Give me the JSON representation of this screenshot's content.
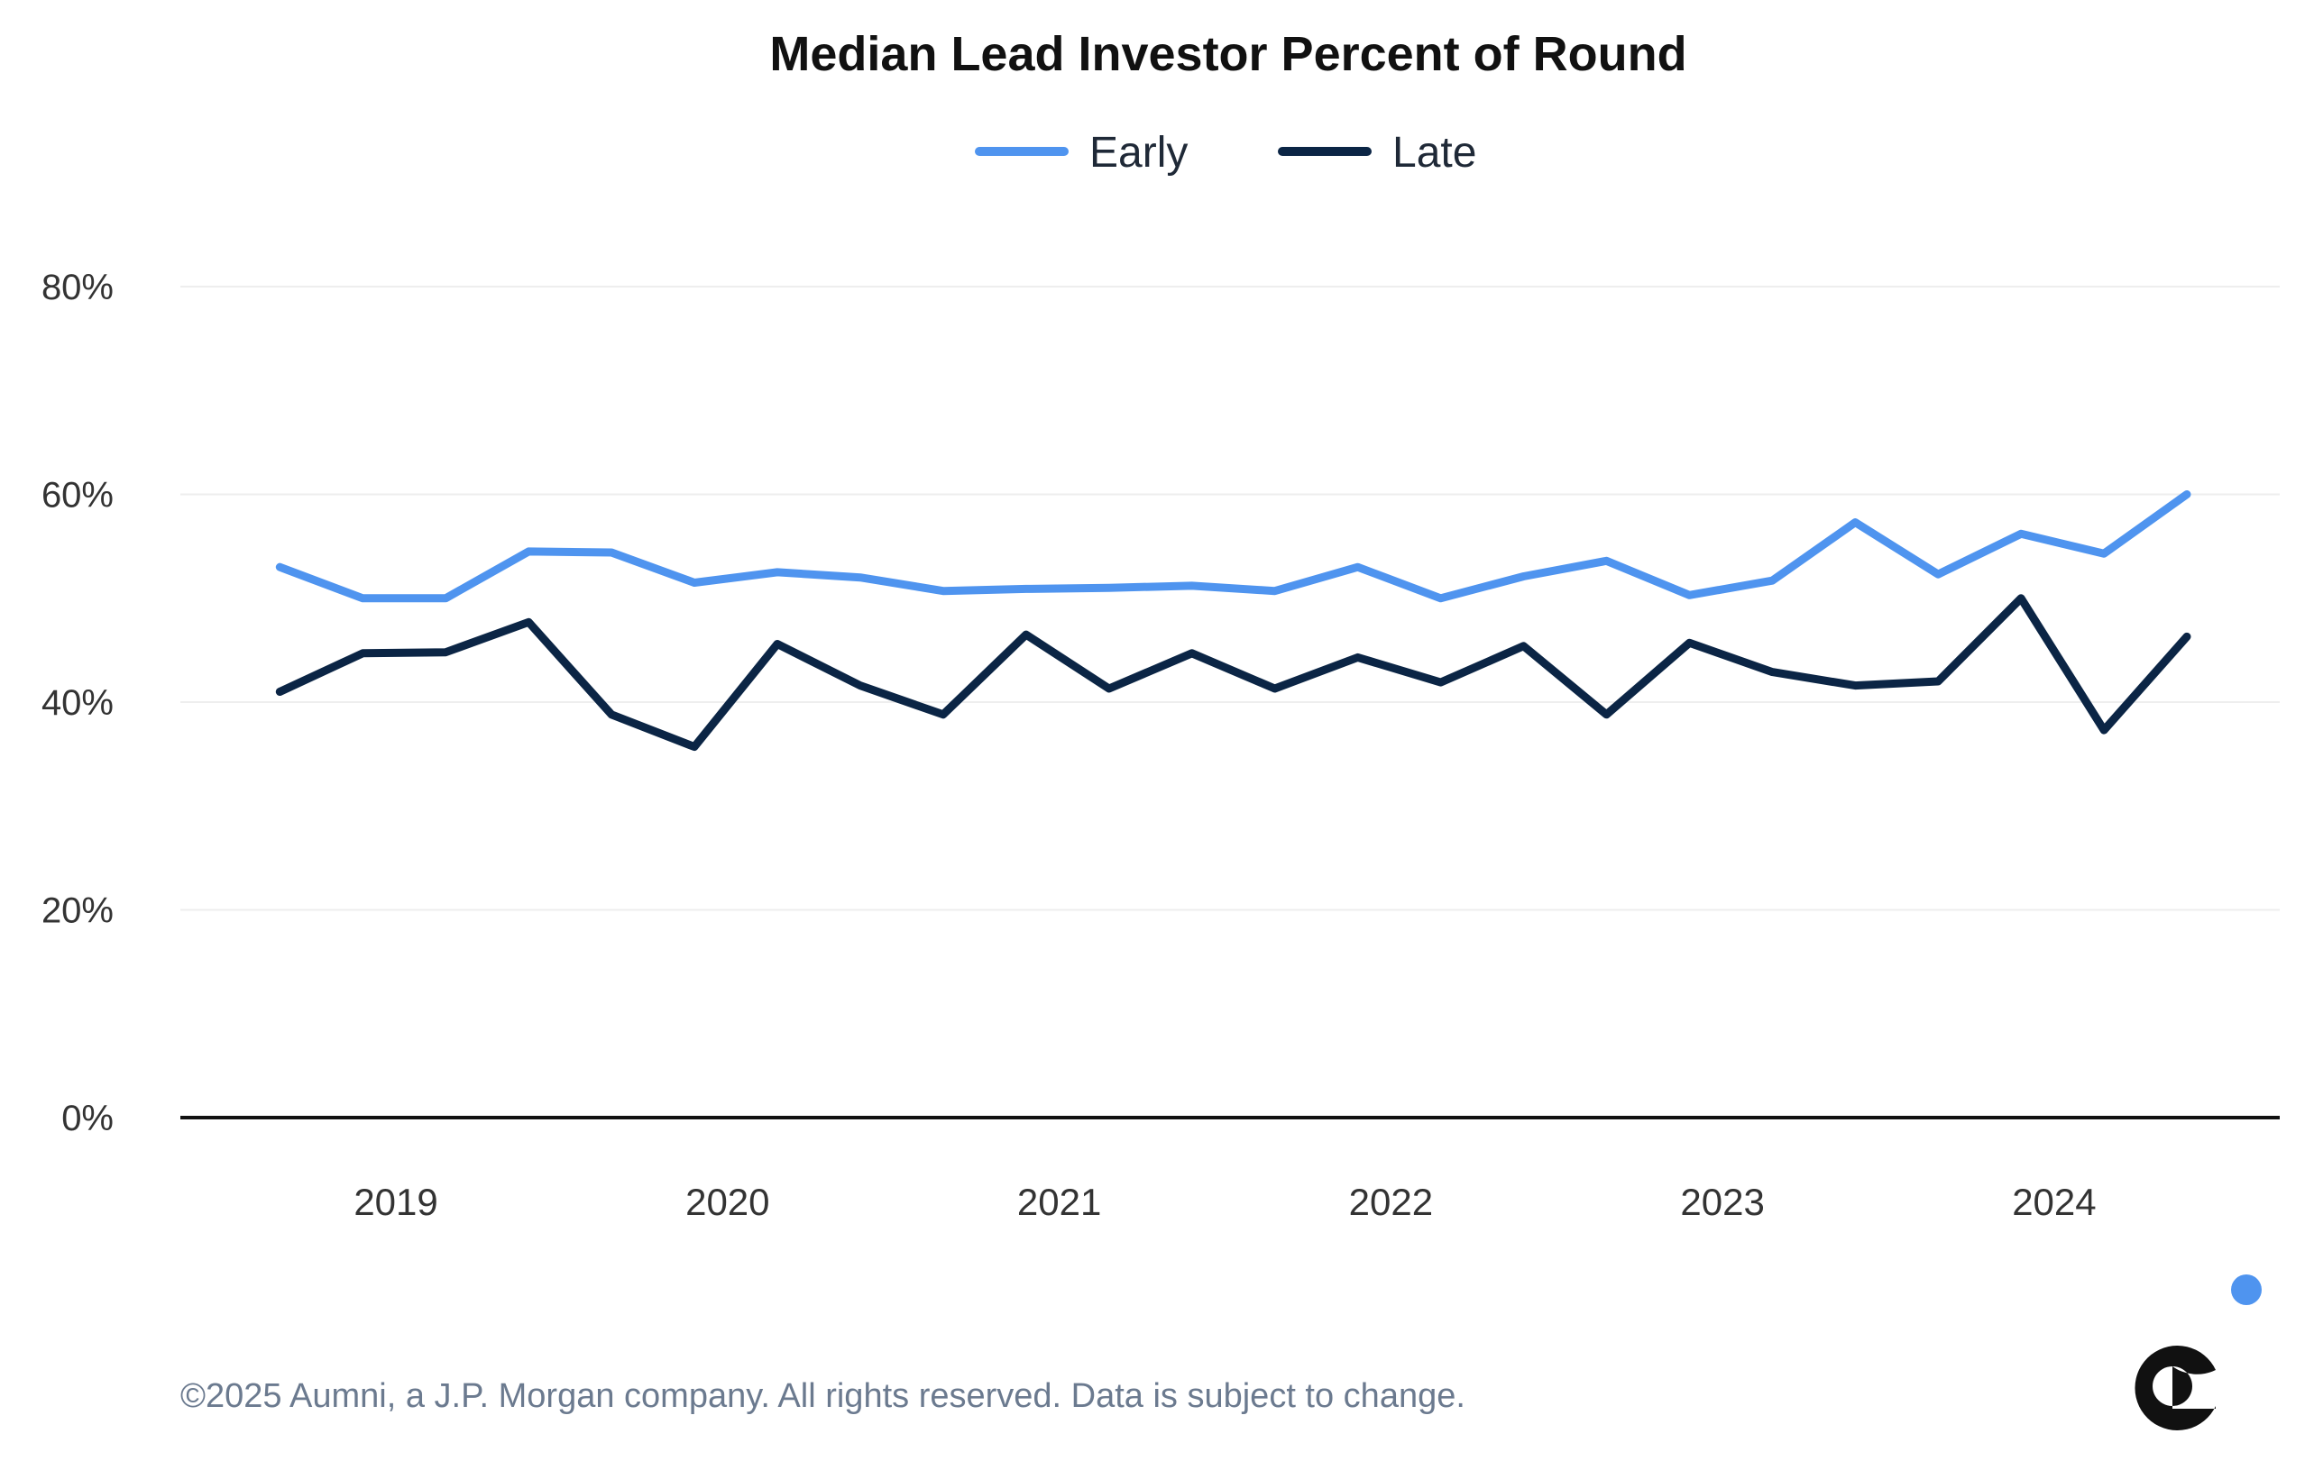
{
  "chart_data": {
    "type": "line",
    "title": "Median Lead Investor Percent of Round",
    "xlabel": "",
    "ylabel": "",
    "ylim": [
      0,
      80
    ],
    "yticks": [
      "0%",
      "20%",
      "40%",
      "60%",
      "80%"
    ],
    "ytick_values": [
      0,
      20,
      40,
      60,
      80
    ],
    "xticks": [
      "2019",
      "2020",
      "2021",
      "2022",
      "2023",
      "2024"
    ],
    "xtick_positions": [
      2019,
      2020,
      2021,
      2022,
      2023,
      2024
    ],
    "xlim": [
      2018.35,
      2024.68
    ],
    "x": [
      2018.65,
      2018.9,
      2019.15,
      2019.4,
      2019.65,
      2019.9,
      2020.15,
      2020.4,
      2020.65,
      2020.9,
      2021.15,
      2021.4,
      2021.65,
      2021.9,
      2022.15,
      2022.4,
      2022.65,
      2022.9,
      2023.15,
      2023.4,
      2023.65,
      2023.9,
      2024.15,
      2024.4
    ],
    "series": [
      {
        "name": "Early",
        "color": "#4f94ef",
        "values": [
          53.0,
          50.0,
          50.0,
          54.5,
          54.4,
          51.5,
          52.5,
          52.0,
          50.7,
          50.9,
          51.0,
          51.2,
          50.7,
          53.0,
          50.0,
          52.1,
          53.6,
          50.3,
          51.7,
          57.3,
          52.3,
          56.2,
          54.3,
          60.0
        ]
      },
      {
        "name": "Late",
        "color": "#0b2545",
        "values": [
          41.0,
          44.7,
          44.8,
          47.7,
          38.8,
          35.7,
          45.6,
          41.6,
          38.8,
          46.5,
          41.3,
          44.7,
          41.3,
          44.3,
          41.9,
          45.4,
          38.8,
          45.7,
          42.9,
          41.6,
          42.0,
          50.0,
          37.3,
          46.3
        ]
      }
    ],
    "legend_position": "top-center"
  },
  "footer": "©2025 Aumni, a J.P. Morgan company. All rights reserved. Data is subject to change.",
  "logo": {
    "icon": "aumni-logo-icon",
    "letter": "a",
    "dark_color": "#111111",
    "dot_color": "#4f94ef"
  }
}
